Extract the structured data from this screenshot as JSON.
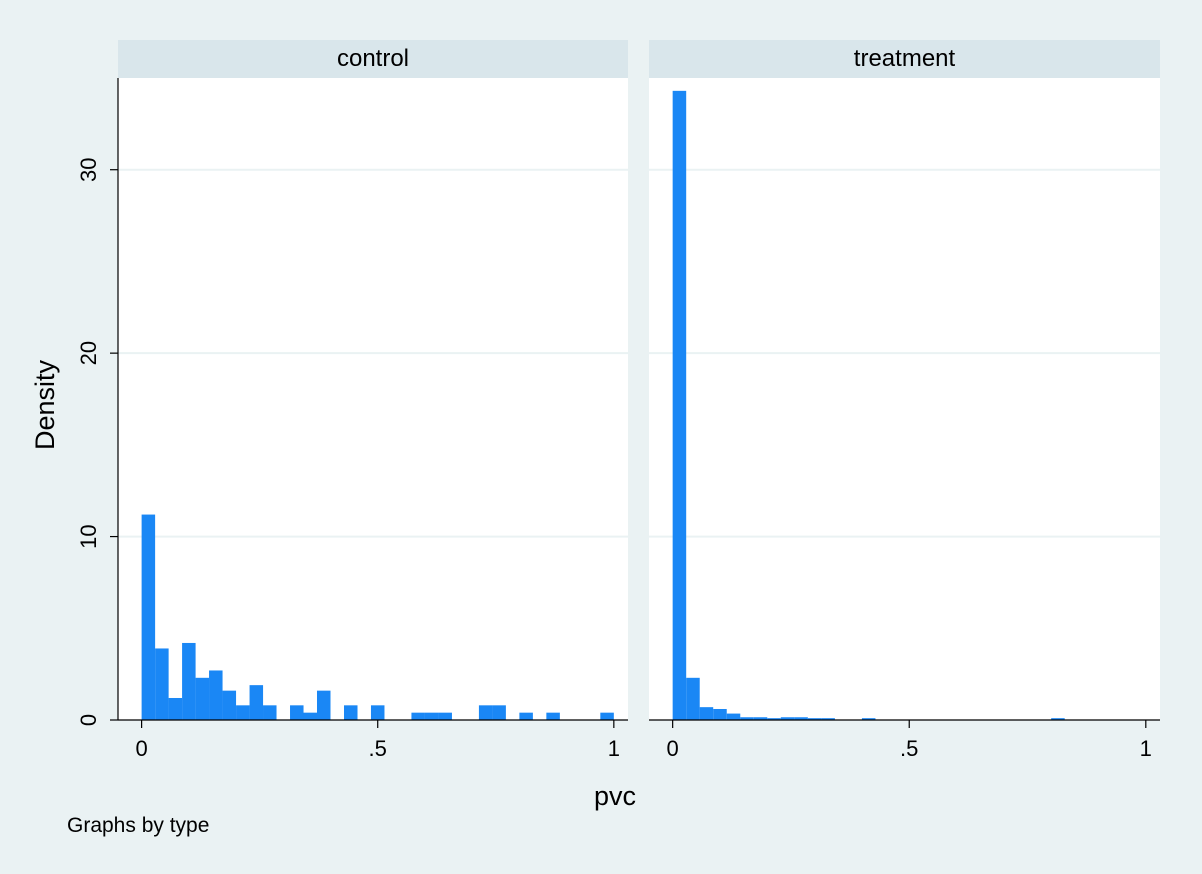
{
  "chart_data": {
    "type": "bar",
    "xlabel": "pvc",
    "ylabel": "Density",
    "note": "Graphs by type",
    "xlim": [
      -0.05,
      1.03
    ],
    "ylim": [
      0,
      35
    ],
    "xticks": [
      0,
      0.5,
      1
    ],
    "xtick_labels": [
      "0",
      ".5",
      "1"
    ],
    "yticks": [
      0,
      10,
      20,
      30
    ],
    "ytick_labels": [
      "0",
      "10",
      "20",
      "30"
    ],
    "grid": true,
    "bar_color": "#1a87f5",
    "bin_width": 0.0286,
    "panels": [
      {
        "name": "control",
        "bars": [
          {
            "x": 0.0143,
            "value": 11.2
          },
          {
            "x": 0.0429,
            "value": 3.9
          },
          {
            "x": 0.0714,
            "value": 1.2
          },
          {
            "x": 0.1,
            "value": 4.2
          },
          {
            "x": 0.1286,
            "value": 2.3
          },
          {
            "x": 0.1571,
            "value": 2.7
          },
          {
            "x": 0.1857,
            "value": 1.6
          },
          {
            "x": 0.2143,
            "value": 0.8
          },
          {
            "x": 0.2429,
            "value": 1.9
          },
          {
            "x": 0.2714,
            "value": 0.8
          },
          {
            "x": 0.3286,
            "value": 0.8
          },
          {
            "x": 0.3571,
            "value": 0.4
          },
          {
            "x": 0.3857,
            "value": 1.6
          },
          {
            "x": 0.4429,
            "value": 0.8
          },
          {
            "x": 0.5,
            "value": 0.8
          },
          {
            "x": 0.5857,
            "value": 0.4
          },
          {
            "x": 0.6143,
            "value": 0.4
          },
          {
            "x": 0.6429,
            "value": 0.4
          },
          {
            "x": 0.7286,
            "value": 0.8
          },
          {
            "x": 0.7571,
            "value": 0.8
          },
          {
            "x": 0.8143,
            "value": 0.4
          },
          {
            "x": 0.8714,
            "value": 0.4
          },
          {
            "x": 0.9857,
            "value": 0.4
          }
        ]
      },
      {
        "name": "treatment",
        "bars": [
          {
            "x": 0.0143,
            "value": 34.3
          },
          {
            "x": 0.0429,
            "value": 2.3
          },
          {
            "x": 0.0714,
            "value": 0.7
          },
          {
            "x": 0.1,
            "value": 0.6
          },
          {
            "x": 0.1286,
            "value": 0.35
          },
          {
            "x": 0.1571,
            "value": 0.15
          },
          {
            "x": 0.1857,
            "value": 0.15
          },
          {
            "x": 0.2143,
            "value": 0.1
          },
          {
            "x": 0.2429,
            "value": 0.15
          },
          {
            "x": 0.2714,
            "value": 0.15
          },
          {
            "x": 0.3,
            "value": 0.1
          },
          {
            "x": 0.3286,
            "value": 0.1
          },
          {
            "x": 0.4143,
            "value": 0.1
          },
          {
            "x": 0.8143,
            "value": 0.1
          }
        ]
      }
    ]
  }
}
